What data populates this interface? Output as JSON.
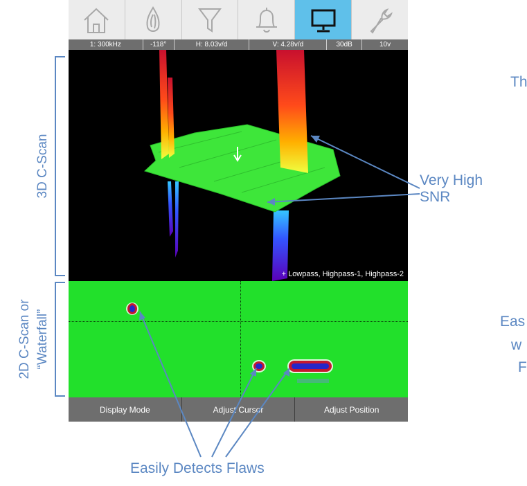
{
  "toolbar": {
    "buttons": [
      {
        "icon": "home-icon",
        "active": false
      },
      {
        "icon": "probe-icon",
        "active": false
      },
      {
        "icon": "filter-icon",
        "active": false
      },
      {
        "icon": "bell-icon",
        "active": false
      },
      {
        "icon": "monitor-icon",
        "active": true
      },
      {
        "icon": "wrench-icon",
        "active": false
      }
    ],
    "active_color": "#5fc0ea"
  },
  "status": {
    "frequency": "1: 300kHz",
    "phase": "-118°",
    "h_gain": "H: 8.03v/d",
    "v_gain": "V: 4.28v/d",
    "gain": "30dB",
    "drive": "10v"
  },
  "scan3d": {
    "filters_text": "+ Lowpass, Highpass-1, Highpass-2"
  },
  "bottom_bar": {
    "display_mode": "Display Mode",
    "adjust_cursor": "Adjust Cursor",
    "adjust_position": "Adjust Position"
  },
  "labels": {
    "scan3d": "3D C-Scan",
    "scan2d_line1": "2D C-Scan or",
    "scan2d_line2": "“Waterfall”"
  },
  "annotations": {
    "snr_line1": "Very High",
    "snr_line2": "SNR",
    "flaws": "Easily Detects Flaws",
    "right_fragment_1": "Th",
    "right_fragment_2a": "Eas",
    "right_fragment_2b": "w",
    "right_fragment_2c": "F"
  },
  "colors": {
    "annotation_blue": "#5b87c2",
    "waterfall_green": "#22e02b",
    "bar_gray": "#6e6e6e"
  }
}
